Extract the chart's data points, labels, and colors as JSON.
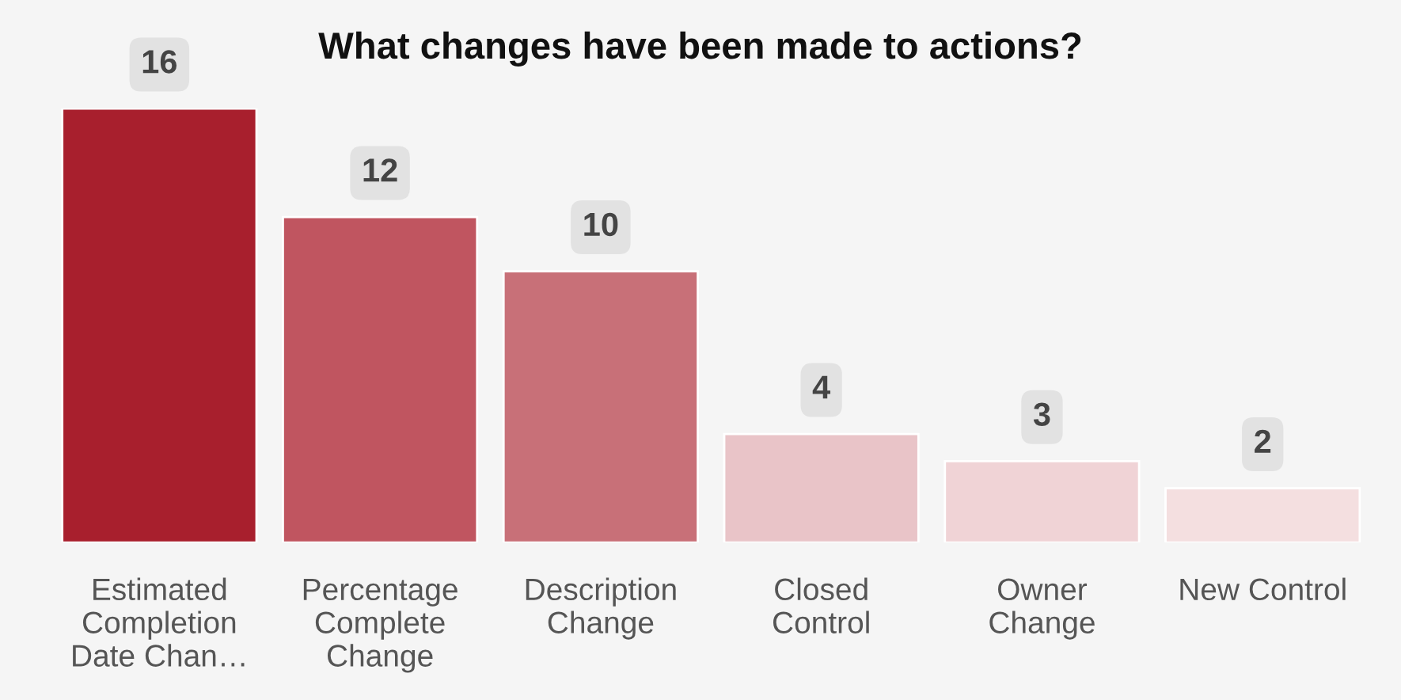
{
  "chart_data": {
    "type": "bar",
    "title": "What changes have been made to actions?",
    "categories": [
      "Estimated\nCompletion\nDate Chan…",
      "Percentage\nComplete\nChange",
      "Description\nChange",
      "Closed\nControl",
      "Owner\nChange",
      "New Control"
    ],
    "values": [
      16,
      12,
      10,
      4,
      3,
      2
    ],
    "colors": [
      "#a81f2d",
      "#c05560",
      "#c87078",
      "#e9c4c8",
      "#f0d3d6",
      "#f4dfe0"
    ],
    "data_labels": true,
    "grid": false,
    "legend": false
  }
}
